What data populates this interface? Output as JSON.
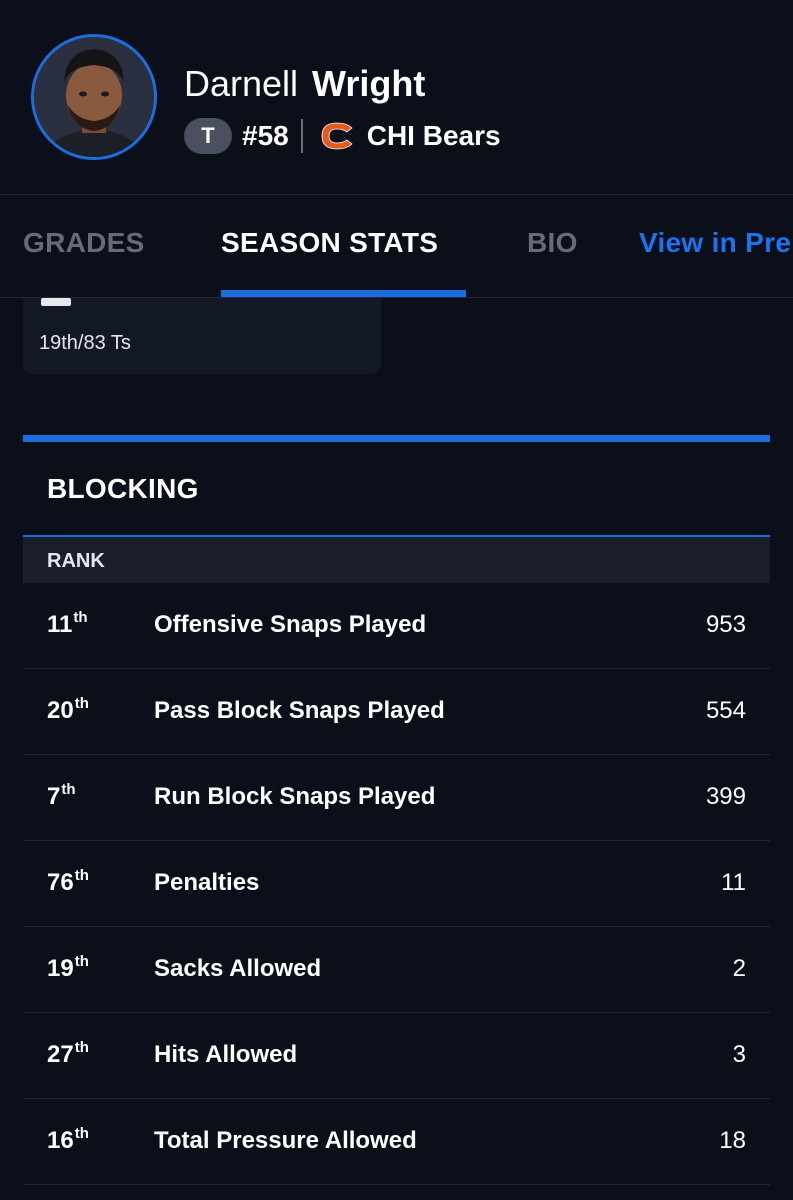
{
  "player": {
    "first_name": "Darnell",
    "last_name": "Wright",
    "position": "T",
    "jersey": "#58",
    "team": "CHI Bears",
    "team_color": "#e55a1c",
    "avatar_border_color": "#1a6fe0"
  },
  "tabs": [
    {
      "label": "GRADES",
      "active": false
    },
    {
      "label": "SEASON STATS",
      "active": true
    },
    {
      "label": "BIO",
      "active": false
    },
    {
      "label": "View in Pre",
      "active": false
    }
  ],
  "grade_card": {
    "rank_text": "19th/83 Ts"
  },
  "blocking": {
    "title": "BLOCKING",
    "rank_header": "RANK",
    "rows": [
      {
        "rank": "11",
        "suffix": "th",
        "label": "Offensive Snaps Played",
        "value": "953"
      },
      {
        "rank": "20",
        "suffix": "th",
        "label": "Pass Block Snaps Played",
        "value": "554"
      },
      {
        "rank": "7",
        "suffix": "th",
        "label": "Run Block Snaps Played",
        "value": "399"
      },
      {
        "rank": "76",
        "suffix": "th",
        "label": "Penalties",
        "value": "11"
      },
      {
        "rank": "19",
        "suffix": "th",
        "label": "Sacks Allowed",
        "value": "2"
      },
      {
        "rank": "27",
        "suffix": "th",
        "label": "Hits Allowed",
        "value": "3"
      },
      {
        "rank": "16",
        "suffix": "th",
        "label": "Total Pressure Allowed",
        "value": "18"
      }
    ]
  },
  "colors": {
    "background": "#0b0f1a",
    "accent": "#1a6fe0",
    "link": "#1a73f0",
    "inactive_tab": "#666b78"
  }
}
